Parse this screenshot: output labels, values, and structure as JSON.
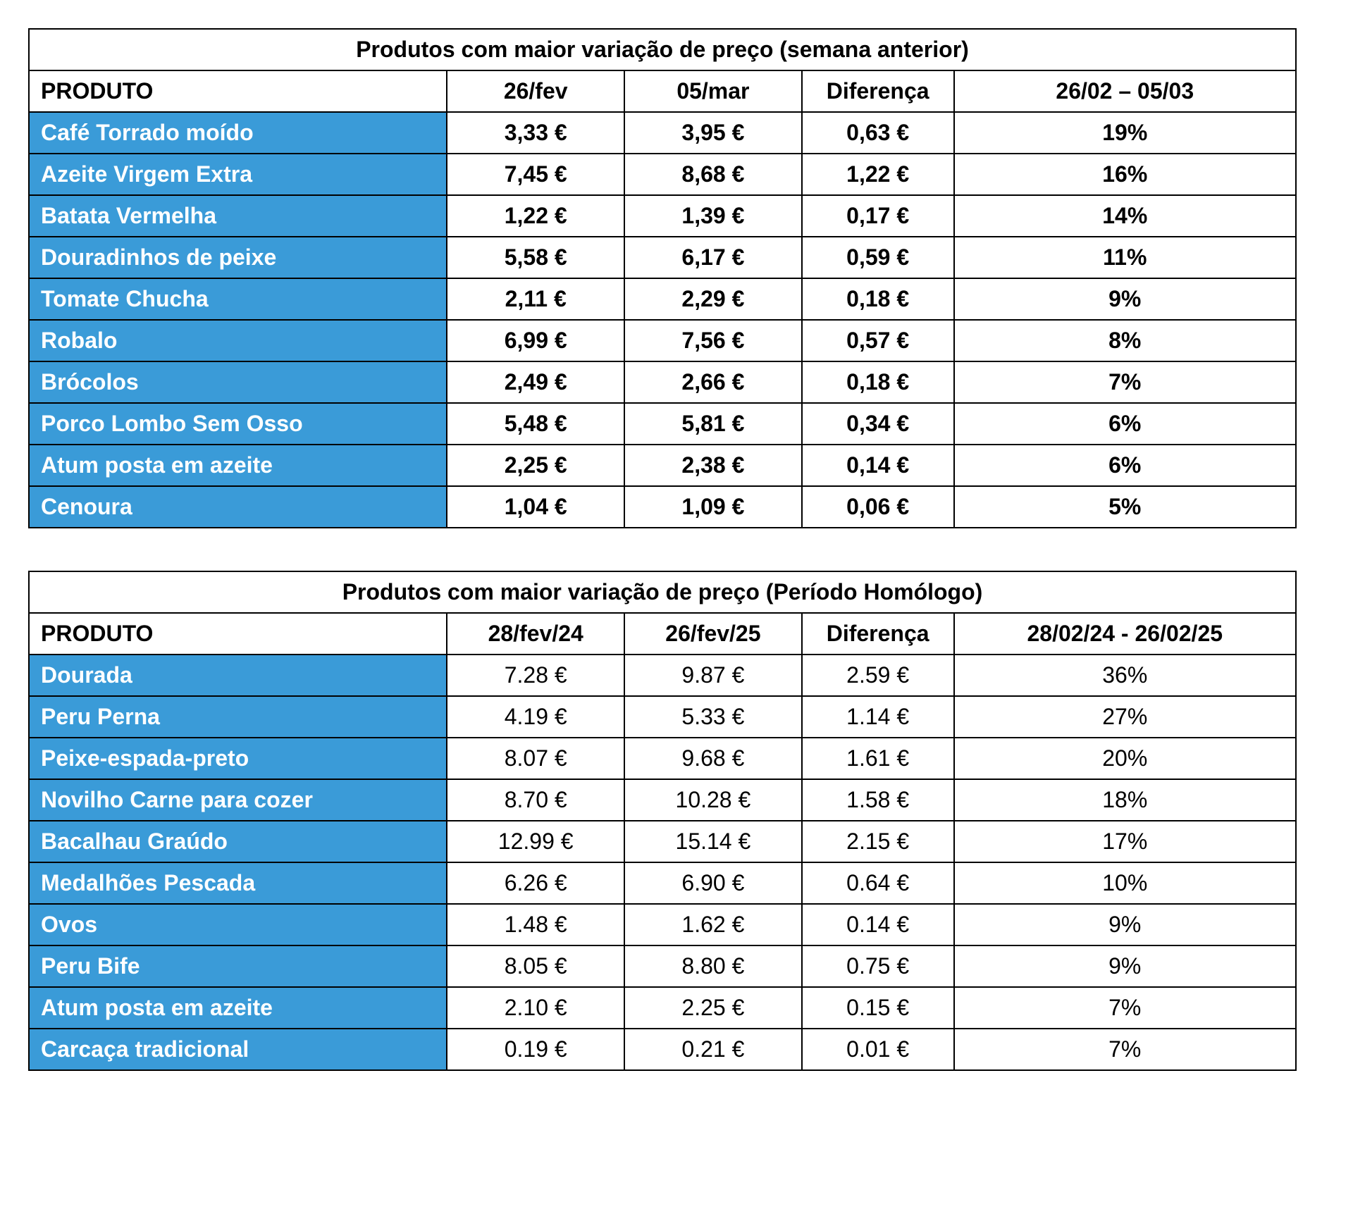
{
  "table1": {
    "title": "Produtos com maior variação de preço (semana anterior)",
    "columns": [
      "PRODUTO",
      "26/fev",
      "05/mar",
      "Diferença",
      "26/02 – 05/03"
    ],
    "rows": [
      {
        "product": "Café Torrado moído",
        "v1": "3,33 €",
        "v2": "3,95 €",
        "diff": "0,63 €",
        "pct": "19%"
      },
      {
        "product": "Azeite Virgem Extra",
        "v1": "7,45 €",
        "v2": "8,68 €",
        "diff": "1,22 €",
        "pct": "16%"
      },
      {
        "product": "Batata Vermelha",
        "v1": "1,22 €",
        "v2": "1,39 €",
        "diff": "0,17 €",
        "pct": "14%"
      },
      {
        "product": "Douradinhos de peixe",
        "v1": "5,58 €",
        "v2": "6,17 €",
        "diff": "0,59 €",
        "pct": "11%"
      },
      {
        "product": "Tomate Chucha",
        "v1": "2,11 €",
        "v2": "2,29 €",
        "diff": "0,18 €",
        "pct": "9%"
      },
      {
        "product": "Robalo",
        "v1": "6,99 €",
        "v2": "7,56 €",
        "diff": "0,57 €",
        "pct": "8%"
      },
      {
        "product": "Brócolos",
        "v1": "2,49 €",
        "v2": "2,66 €",
        "diff": "0,18 €",
        "pct": "7%"
      },
      {
        "product": "Porco Lombo Sem Osso",
        "v1": "5,48 €",
        "v2": "5,81 €",
        "diff": "0,34 €",
        "pct": "6%"
      },
      {
        "product": "Atum posta em azeite",
        "v1": "2,25 €",
        "v2": "2,38 €",
        "diff": "0,14 €",
        "pct": "6%"
      },
      {
        "product": "Cenoura",
        "v1": "1,04 €",
        "v2": "1,09 €",
        "diff": "0,06 €",
        "pct": "5%"
      }
    ],
    "product_bg": "#3a9bd8",
    "product_color": "#ffffff",
    "border_color": "#000000",
    "font_weight_values": "bold"
  },
  "table2": {
    "title": "Produtos com maior variação de preço (Período Homólogo)",
    "columns": [
      "PRODUTO",
      "28/fev/24",
      "26/fev/25",
      "Diferença",
      "28/02/24 - 26/02/25"
    ],
    "rows": [
      {
        "product": "Dourada",
        "v1": "7.28 €",
        "v2": "9.87 €",
        "diff": "2.59 €",
        "pct": "36%"
      },
      {
        "product": "Peru Perna",
        "v1": "4.19 €",
        "v2": "5.33 €",
        "diff": "1.14 €",
        "pct": "27%"
      },
      {
        "product": "Peixe-espada-preto",
        "v1": "8.07 €",
        "v2": "9.68 €",
        "diff": "1.61 €",
        "pct": "20%"
      },
      {
        "product": "Novilho Carne para cozer",
        "v1": "8.70 €",
        "v2": "10.28 €",
        "diff": "1.58 €",
        "pct": "18%"
      },
      {
        "product": "Bacalhau Graúdo",
        "v1": "12.99 €",
        "v2": "15.14 €",
        "diff": "2.15 €",
        "pct": "17%"
      },
      {
        "product": "Medalhões Pescada",
        "v1": "6.26 €",
        "v2": "6.90 €",
        "diff": "0.64 €",
        "pct": "10%"
      },
      {
        "product": "Ovos",
        "v1": "1.48 €",
        "v2": "1.62 €",
        "diff": "0.14 €",
        "pct": "9%"
      },
      {
        "product": "Peru Bife",
        "v1": "8.05 €",
        "v2": "8.80 €",
        "diff": "0.75 €",
        "pct": "9%"
      },
      {
        "product": "Atum posta em azeite",
        "v1": "2.10 €",
        "v2": "2.25 €",
        "diff": "0.15 €",
        "pct": "7%"
      },
      {
        "product": "Carcaça tradicional",
        "v1": "0.19 €",
        "v2": "0.21 €",
        "diff": "0.01 €",
        "pct": "7%"
      }
    ],
    "product_bg": "#3a9bd8",
    "product_color": "#ffffff",
    "border_color": "#000000",
    "font_weight_values": "normal"
  }
}
